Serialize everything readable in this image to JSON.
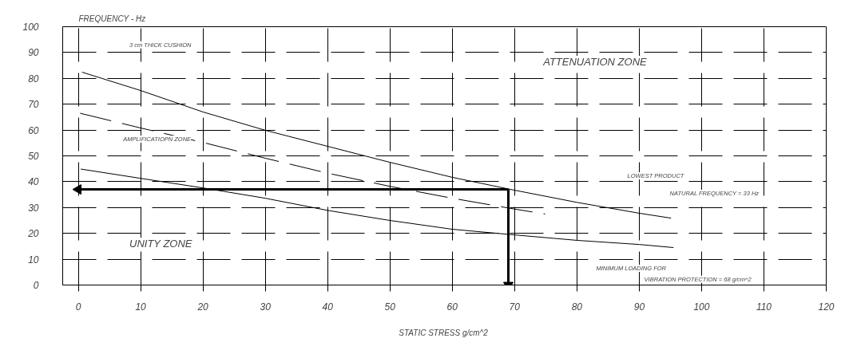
{
  "chart_data": {
    "type": "line",
    "ylabel": "FREQUENCY - Hz",
    "xlabel": "STATIC STRESS  g/cm^2",
    "xlim": [
      -2.5,
      120
    ],
    "ylim": [
      0,
      100
    ],
    "xticks": [
      0,
      10,
      20,
      30,
      40,
      50,
      60,
      70,
      80,
      90,
      100,
      110,
      120
    ],
    "yticks": [
      0,
      10,
      20,
      30,
      40,
      50,
      60,
      70,
      80,
      90,
      100
    ],
    "grid": true,
    "marker": "none",
    "series": [
      {
        "color": "#000000",
        "line_style": "solid",
        "x": [
          0.6,
          10,
          20,
          30,
          40,
          50,
          60,
          70,
          80,
          90,
          95.1
        ],
        "values": [
          82.4,
          75.3,
          67,
          59.9,
          53.7,
          47.5,
          41.7,
          36.7,
          32,
          27.8,
          25.9
        ]
      },
      {
        "color": "#000000",
        "line_style": "dashed",
        "x": [
          0.3,
          10,
          20,
          30,
          40,
          50,
          60,
          70,
          74.9
        ],
        "values": [
          66.5,
          60.8,
          55.2,
          49.1,
          43.3,
          38.2,
          33.6,
          29.4,
          27.5
        ]
      },
      {
        "color": "#000000",
        "line_style": "solid",
        "x": [
          0.4,
          10,
          20,
          30,
          40,
          50,
          60,
          70,
          80,
          90,
          95.5
        ],
        "values": [
          44.9,
          41.3,
          37.6,
          33.6,
          28.9,
          25,
          21.6,
          19.4,
          17.3,
          15.7,
          14.5
        ]
      },
      {
        "type": "line",
        "marker": "triangle",
        "color": "#000000",
        "line_style": "solid",
        "x": [
          0,
          69,
          69
        ],
        "values": [
          37,
          37,
          0
        ]
      }
    ],
    "annotations": [
      "3 cm THICK CUSHION",
      "AMPLIFICATIOPN ZONE",
      "UNITY ZONE",
      "ATTENUATION ZONE",
      "LOWEST PRODUCT",
      "NATURAL FREQUENCY = 33 Hz",
      "MINIMUM LOADING FOR",
      "VIBRATION PROTECTION = 68 g/cm^2"
    ]
  }
}
